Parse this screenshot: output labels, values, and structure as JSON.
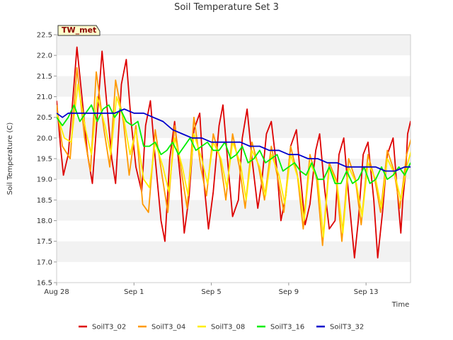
{
  "chart_data": {
    "type": "line",
    "title": "Soil Temperature Set 3",
    "xlabel": "Time",
    "ylabel": "Soil Temperature (C)",
    "badge": "TW_met",
    "x_tick_labels": [
      "Aug 28",
      "Sep 1",
      "Sep 5",
      "Sep 9",
      "Sep 13"
    ],
    "x_tick_days": [
      0,
      4,
      8,
      12,
      16
    ],
    "xlim_days": [
      0,
      18.3
    ],
    "ylim": [
      16.5,
      22.5
    ],
    "y_ticks": [
      16.5,
      17.0,
      17.5,
      18.0,
      18.5,
      19.0,
      19.5,
      20.0,
      20.5,
      21.0,
      21.5,
      22.0,
      22.5
    ],
    "y_tick_labels": [
      "16.5",
      "17.0",
      "17.5",
      "18.0",
      "18.5",
      "19.0",
      "19.5",
      "20.0",
      "20.5",
      "21.0",
      "21.5",
      "22.0",
      "22.5"
    ],
    "grid": "horizontal bands",
    "legend_position": "bottom",
    "series": [
      {
        "name": "SoilT3_02",
        "color": "#dd0000",
        "x": [
          0.0,
          0.2,
          0.35,
          0.6,
          0.85,
          1.05,
          1.35,
          1.6,
          1.85,
          2.05,
          2.35,
          2.6,
          2.85,
          3.05,
          3.35,
          3.6,
          3.85,
          4.1,
          4.4,
          4.6,
          4.85,
          5.1,
          5.4,
          5.6,
          5.85,
          6.1,
          6.4,
          6.6,
          6.85,
          7.1,
          7.4,
          7.6,
          7.85,
          8.1,
          8.4,
          8.6,
          8.85,
          9.1,
          9.4,
          9.6,
          9.85,
          10.1,
          10.4,
          10.6,
          10.85,
          11.1,
          11.4,
          11.6,
          11.85,
          12.1,
          12.4,
          12.6,
          12.85,
          13.1,
          13.4,
          13.6,
          13.85,
          14.1,
          14.4,
          14.6,
          14.85,
          15.1,
          15.4,
          15.6,
          15.85,
          16.1,
          16.4,
          16.6,
          16.85,
          17.1,
          17.4,
          17.6,
          17.8,
          17.9
        ],
        "y": [
          20.9,
          19.8,
          19.1,
          19.6,
          21.0,
          22.2,
          20.8,
          19.6,
          18.9,
          20.2,
          22.1,
          20.8,
          19.5,
          18.9,
          21.3,
          21.9,
          20.4,
          19.3,
          18.7,
          20.3,
          20.9,
          19.5,
          18.0,
          17.5,
          19.5,
          20.4,
          19.0,
          17.7,
          18.6,
          20.2,
          20.6,
          19.0,
          17.8,
          18.7,
          20.3,
          20.8,
          19.4,
          18.1,
          18.5,
          20.0,
          20.7,
          19.5,
          18.3,
          18.9,
          20.1,
          20.4,
          19.2,
          18.0,
          18.6,
          19.8,
          20.2,
          19.1,
          17.9,
          18.4,
          19.7,
          20.1,
          18.8,
          17.8,
          18.0,
          19.6,
          20.0,
          18.6,
          17.1,
          18.0,
          19.6,
          19.9,
          18.5,
          17.1,
          18.2,
          19.6,
          20.0,
          18.8,
          17.7,
          18.5
        ],
        "x_extra": [
          18.05,
          18.15,
          18.3,
          18.4
        ],
        "y_extra": [
          19.2,
          20.1,
          20.4,
          20.2
        ]
      },
      {
        "name": "SoilT3_04",
        "color": "#ff9900",
        "x": [
          0.0,
          0.3,
          0.7,
          1.05,
          1.45,
          1.75,
          2.05,
          2.45,
          2.75,
          3.05,
          3.45,
          3.75,
          4.1,
          4.45,
          4.75,
          5.1,
          5.45,
          5.75,
          6.1,
          6.45,
          6.75,
          7.1,
          7.45,
          7.75,
          8.1,
          8.45,
          8.75,
          9.1,
          9.45,
          9.75,
          10.1,
          10.45,
          10.75,
          11.1,
          11.45,
          11.75,
          12.1,
          12.45,
          12.75,
          13.1,
          13.45,
          13.75,
          14.1,
          14.45,
          14.75,
          15.1,
          15.45,
          15.75,
          16.1,
          16.45,
          16.75,
          17.1,
          17.45,
          17.75,
          18.1,
          18.4
        ],
        "y": [
          20.8,
          19.8,
          19.5,
          21.7,
          20.0,
          19.2,
          21.6,
          20.2,
          19.3,
          21.4,
          20.4,
          19.1,
          20.3,
          18.4,
          18.2,
          20.2,
          19.1,
          18.2,
          20.3,
          19.2,
          18.3,
          20.5,
          19.3,
          18.6,
          20.1,
          19.5,
          18.5,
          20.1,
          19.3,
          18.3,
          19.9,
          19.3,
          18.5,
          19.8,
          19.0,
          18.2,
          19.8,
          19.1,
          17.8,
          19.6,
          19.0,
          17.4,
          19.4,
          19.0,
          17.5,
          19.5,
          19.0,
          17.9,
          19.6,
          19.0,
          18.2,
          19.7,
          19.2,
          18.3,
          19.6,
          20.1
        ]
      },
      {
        "name": "SoilT3_08",
        "color": "#ffee00",
        "x": [
          0.0,
          0.4,
          0.75,
          1.1,
          1.5,
          1.8,
          2.1,
          2.5,
          2.8,
          3.1,
          3.5,
          3.8,
          4.1,
          4.5,
          4.8,
          5.1,
          5.5,
          5.8,
          6.1,
          6.5,
          6.8,
          7.1,
          7.5,
          7.8,
          8.1,
          8.5,
          8.8,
          9.1,
          9.5,
          9.8,
          10.1,
          10.5,
          10.8,
          11.1,
          11.5,
          11.8,
          12.1,
          12.5,
          12.8,
          13.1,
          13.5,
          13.8,
          14.1,
          14.5,
          14.8,
          15.1,
          15.5,
          15.8,
          16.1,
          16.5,
          16.8,
          17.1,
          17.5,
          17.8,
          18.1,
          18.4
        ],
        "y": [
          20.6,
          20.0,
          19.9,
          21.3,
          20.2,
          19.6,
          21.0,
          20.3,
          19.6,
          21.0,
          20.4,
          19.6,
          20.2,
          19.0,
          18.8,
          19.9,
          19.3,
          18.7,
          20.0,
          19.3,
          18.6,
          20.1,
          19.5,
          18.9,
          19.9,
          19.5,
          18.8,
          19.9,
          19.4,
          18.5,
          19.7,
          19.3,
          18.6,
          19.6,
          19.1,
          18.4,
          19.6,
          19.0,
          18.0,
          19.4,
          19.0,
          17.6,
          19.3,
          18.9,
          17.7,
          19.3,
          18.9,
          18.1,
          19.4,
          19.0,
          18.3,
          19.5,
          19.1,
          18.5,
          19.3,
          19.8
        ]
      },
      {
        "name": "SoilT3_16",
        "color": "#00ee00",
        "x": [
          0.0,
          0.3,
          0.6,
          0.9,
          1.2,
          1.5,
          1.8,
          2.1,
          2.4,
          2.7,
          3.0,
          3.3,
          3.6,
          3.9,
          4.2,
          4.5,
          4.8,
          5.1,
          5.4,
          5.7,
          6.0,
          6.3,
          6.6,
          6.9,
          7.2,
          7.5,
          7.8,
          8.1,
          8.4,
          8.7,
          9.0,
          9.3,
          9.6,
          9.9,
          10.2,
          10.5,
          10.8,
          11.1,
          11.4,
          11.7,
          12.0,
          12.3,
          12.6,
          12.9,
          13.2,
          13.5,
          13.8,
          14.1,
          14.4,
          14.7,
          15.0,
          15.3,
          15.6,
          15.9,
          16.2,
          16.5,
          16.8,
          17.1,
          17.4,
          17.7,
          18.0,
          18.3
        ],
        "y": [
          20.5,
          20.3,
          20.5,
          20.8,
          20.4,
          20.6,
          20.8,
          20.4,
          20.7,
          20.8,
          20.5,
          20.7,
          20.4,
          20.3,
          20.4,
          19.8,
          19.8,
          19.9,
          19.6,
          19.7,
          19.9,
          19.6,
          19.8,
          20.0,
          19.7,
          19.8,
          19.9,
          19.7,
          19.7,
          19.9,
          19.5,
          19.6,
          19.8,
          19.4,
          19.5,
          19.7,
          19.4,
          19.5,
          19.6,
          19.2,
          19.3,
          19.4,
          19.2,
          19.1,
          19.4,
          19.0,
          19.0,
          19.3,
          18.9,
          18.9,
          19.2,
          18.9,
          19.0,
          19.3,
          18.9,
          19.0,
          19.3,
          19.0,
          19.1,
          19.3,
          19.1,
          19.4
        ]
      },
      {
        "name": "SoilT3_32",
        "color": "#0000cc",
        "x": [
          0.0,
          0.3,
          0.6,
          1.0,
          1.5,
          2.0,
          2.5,
          3.0,
          3.5,
          4.0,
          4.5,
          5.0,
          5.5,
          6.0,
          6.5,
          7.0,
          7.5,
          8.0,
          8.5,
          9.0,
          9.5,
          10.0,
          10.5,
          11.0,
          11.5,
          12.0,
          12.5,
          13.0,
          13.5,
          14.0,
          14.5,
          15.0,
          15.5,
          16.0,
          16.5,
          17.0,
          17.5,
          18.0,
          18.3
        ],
        "y": [
          20.6,
          20.5,
          20.6,
          20.6,
          20.6,
          20.6,
          20.6,
          20.6,
          20.7,
          20.6,
          20.6,
          20.5,
          20.4,
          20.2,
          20.1,
          20.0,
          20.0,
          19.9,
          19.9,
          19.9,
          19.9,
          19.8,
          19.8,
          19.7,
          19.7,
          19.6,
          19.6,
          19.5,
          19.5,
          19.4,
          19.4,
          19.3,
          19.3,
          19.3,
          19.3,
          19.2,
          19.2,
          19.3,
          19.3
        ]
      }
    ]
  }
}
